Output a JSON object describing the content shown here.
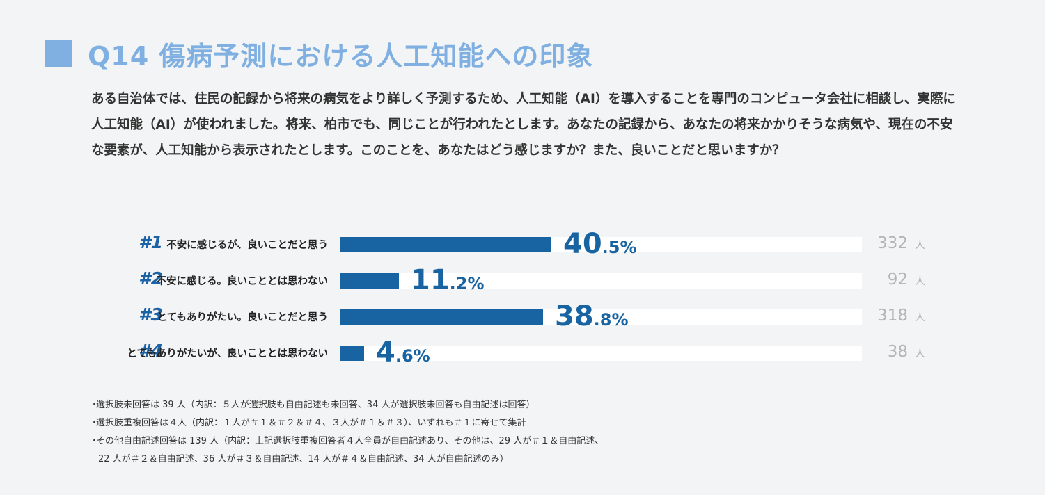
{
  "header": {
    "title": "Q14 傷病予測における人工知能への印象"
  },
  "question_text": "ある自治体では、住民の記録から将来の病気をより詳しく予測するため、人工知能（AI）を導入することを専門のコンピュータ会社に相談し、実際に人工知能（AI）が使われました。将来、柏市でも、同じことが行われたとします。あなたの記録から、あなたの将来かかりそうな病気や、現在の不安な要素が、人工知能から表示されたとします。このことを、あなたはどう感じますか？また、良いことだと思いますか？",
  "chart_data": {
    "type": "bar",
    "orientation": "horizontal",
    "xlim": [
      0,
      100
    ],
    "unit_label": "人",
    "colors": {
      "bar": "#1863a1",
      "track": "#ffffff",
      "number": "#1c63a5",
      "count": "#b4b4b4"
    },
    "categories": [
      {
        "num": "#1",
        "label": "不安に感じるが、良いことだと思う",
        "value": 40.5,
        "pct_int": "40",
        "pct_dec": ".5%",
        "count": "332"
      },
      {
        "num": "#2",
        "label": "不安に感じる。良いこととは思わない",
        "value": 11.2,
        "pct_int": "11",
        "pct_dec": ".2%",
        "count": "92"
      },
      {
        "num": "#3",
        "label": "とてもありがたい。良いことだと思う",
        "value": 38.8,
        "pct_int": "38",
        "pct_dec": ".8%",
        "count": "318"
      },
      {
        "num": "#4",
        "label": "とてもありがたいが、良いこととは思わない",
        "value": 4.6,
        "pct_int": "4",
        "pct_dec": ".6%",
        "count": "38"
      }
    ]
  },
  "notes": {
    "bullet": "・",
    "items": [
      "選択肢未回答は 39 人（内訳：５人が選択肢も自由記述も未回答、34 人が選択肢未回答も自由記述は回答）",
      "選択肢重複回答は４人（内訳：１人が＃１＆＃２＆＃４、３人が＃１＆＃３）、いずれも＃１に寄せて集計",
      "その他自由記述回答は 139 人（内訳：上記選択肢重複回答者４人全員が自由記述あり、その他は、29 人が＃１＆自由記述、"
    ],
    "continuation": "22 人が＃２＆自由記述、36 人が＃３＆自由記述、14 人が＃４＆自由記述、34 人が自由記述のみ）"
  }
}
